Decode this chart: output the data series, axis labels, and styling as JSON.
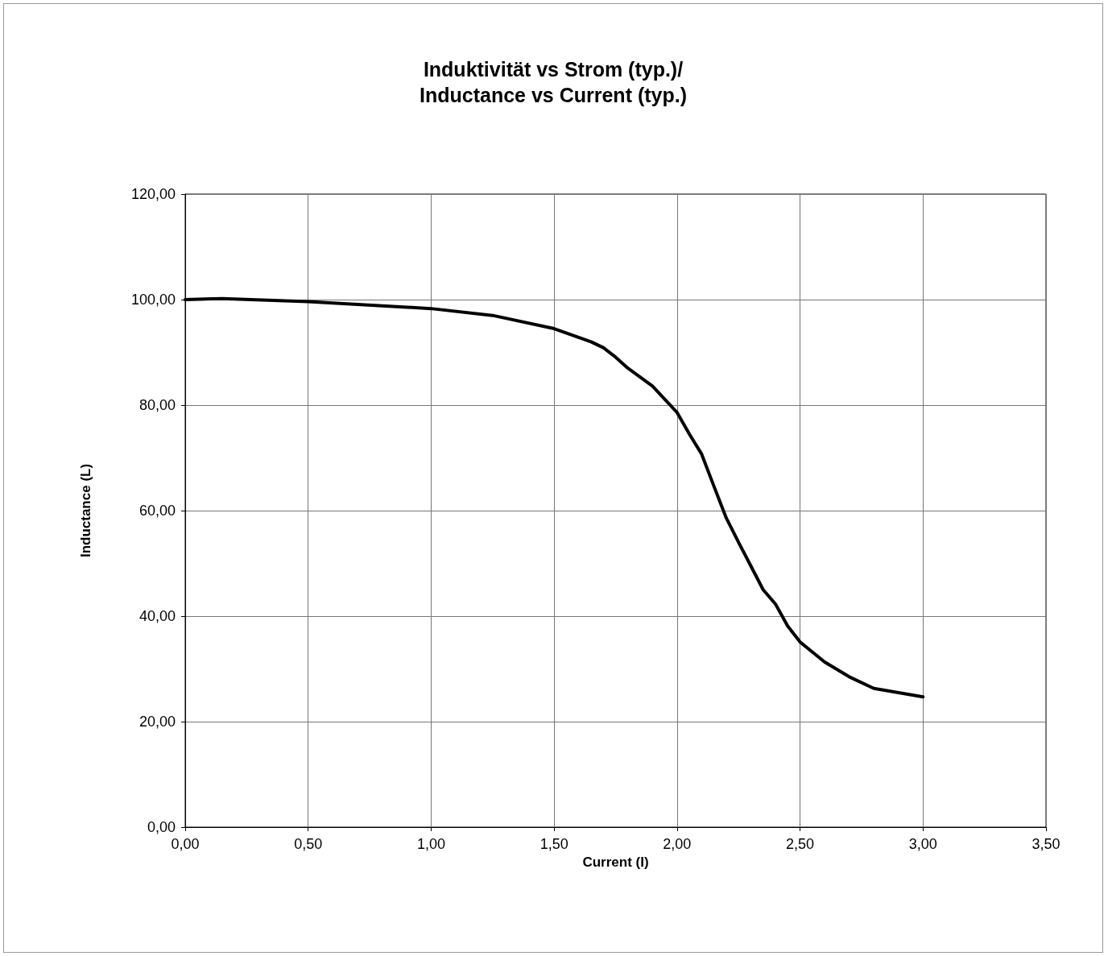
{
  "chart_data": {
    "type": "line",
    "title": "Induktivität vs Strom (typ.)/\nInductance vs Current (typ.)",
    "xlabel": "Current (I)",
    "ylabel": "Inductance (L)",
    "series": [
      {
        "color": "#000000",
        "x": [
          0,
          0.15,
          0.5,
          1.0,
          1.25,
          1.5,
          1.65,
          1.7,
          1.75,
          1.8,
          1.9,
          2.0,
          2.05,
          2.1,
          2.15,
          2.2,
          2.25,
          2.3,
          2.35,
          2.4,
          2.45,
          2.5,
          2.6,
          2.7,
          2.8,
          2.9,
          3.0
        ],
        "values": [
          100.0,
          100.2,
          99.6,
          98.3,
          97.0,
          94.5,
          92.0,
          90.9,
          89.1,
          87.0,
          83.6,
          78.6,
          74.5,
          70.7,
          64.6,
          58.6,
          54.0,
          49.5,
          45.0,
          42.3,
          38.1,
          35.1,
          31.3,
          28.5,
          26.3,
          25.5,
          24.7
        ]
      }
    ],
    "xlim": [
      0,
      3.5
    ],
    "xticks": [
      {
        "value": 0,
        "label": "0,00"
      },
      {
        "value": 0.5,
        "label": "0,50"
      },
      {
        "value": 1,
        "label": "1,00"
      },
      {
        "value": 1.5,
        "label": "1,50"
      },
      {
        "value": 2,
        "label": "2,00"
      },
      {
        "value": 2.5,
        "label": "2,50"
      },
      {
        "value": 3,
        "label": "3,00"
      },
      {
        "value": 3.5,
        "label": "3,50"
      }
    ],
    "ylim": [
      0,
      120
    ],
    "yticks": [
      {
        "value": 0,
        "label": "0,00"
      },
      {
        "value": 20,
        "label": "20,00"
      },
      {
        "value": 40,
        "label": "40,00"
      },
      {
        "value": 60,
        "label": "60,00"
      },
      {
        "value": 80,
        "label": "80,00"
      },
      {
        "value": 100,
        "label": "100,00"
      },
      {
        "value": 120,
        "label": "120,00"
      }
    ],
    "grid": true,
    "marker": "none",
    "line_style": "solid"
  }
}
